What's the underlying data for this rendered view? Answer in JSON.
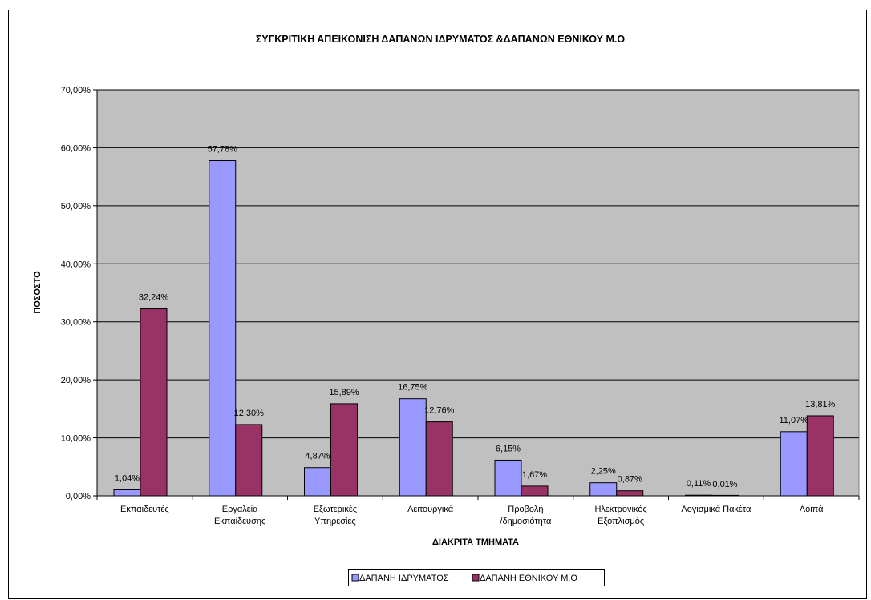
{
  "chart_data": {
    "type": "bar",
    "title": "ΣΥΓΚΡΙΤΙΚΗ ΑΠΕΙΚΟΝΙΣΗ ΔΑΠΑΝΩΝ ΙΔΡΥΜΑΤΟΣ &ΔΑΠΑΝΩΝ ΕΘΝΙΚΟΥ Μ.Ο",
    "xlabel": "ΔΙΑΚΡΙΤΑ ΤΜΗΜΑΤΑ",
    "ylabel": "ΠΟΣΟΣΤΟ",
    "ylim": [
      0,
      70
    ],
    "yticks": [
      "0,00%",
      "10,00%",
      "20,00%",
      "30,00%",
      "40,00%",
      "50,00%",
      "60,00%",
      "70,00%"
    ],
    "grid": true,
    "legend_position": "bottom",
    "plot_background": "#c0c0c0",
    "categories": [
      [
        "Εκπαιδευτές"
      ],
      [
        "Εργαλεία",
        "Εκπαίδευσης"
      ],
      [
        "Εξωτερικές",
        "Υπηρεσίες"
      ],
      [
        "Λειτουργικά"
      ],
      [
        "Προβολή",
        "/δημοσιότητα"
      ],
      [
        "Ηλεκτρονικός",
        "Εξοπλισμός"
      ],
      [
        "Λογισμικά Πακέτα"
      ],
      [
        "Λοιπά"
      ]
    ],
    "series": [
      {
        "name": "ΔΑΠΑΝΗ ΙΔΡΥΜΑΤΟΣ",
        "color": "#9999ff",
        "values": [
          1.04,
          57.78,
          4.87,
          16.75,
          6.15,
          2.25,
          0.11,
          11.07
        ],
        "labels": [
          "1,04%",
          "57,78%",
          "4,87%",
          "16,75%",
          "6,15%",
          "2,25%",
          "0,11%",
          "11,07%"
        ]
      },
      {
        "name": "ΔΑΠΑΝΗ ΕΘΝΙΚΟΥ Μ.Ο",
        "color": "#993366",
        "values": [
          32.24,
          12.3,
          15.89,
          12.76,
          1.67,
          0.87,
          0.01,
          13.81
        ],
        "labels": [
          "32,24%",
          "12,30%",
          "15,89%",
          "12,76%",
          "1,67%",
          "0,87%",
          "0,01%",
          "13,81%"
        ]
      }
    ]
  }
}
